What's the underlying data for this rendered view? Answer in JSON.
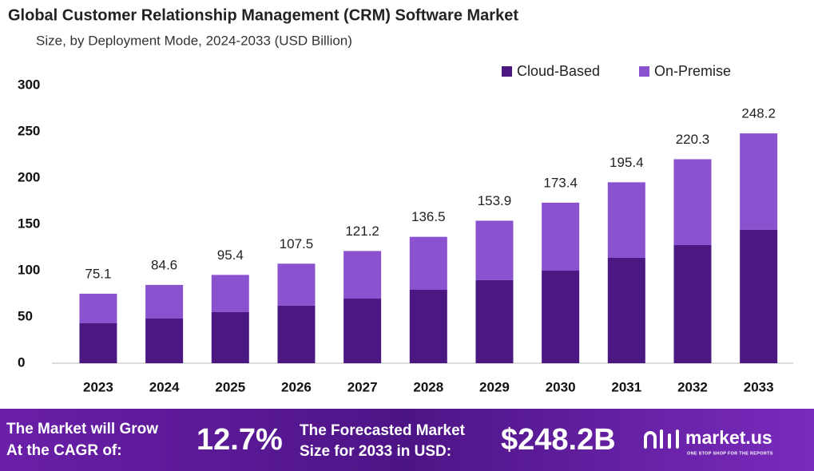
{
  "chart_data": {
    "type": "stacked_bar",
    "title": "Global Customer Relationship Management (CRM) Software Market",
    "subtitle": "Size, by Deployment Mode, 2024-2033 (USD Billion)",
    "categories": [
      "2023",
      "2024",
      "2025",
      "2026",
      "2027",
      "2028",
      "2029",
      "2030",
      "2031",
      "2032",
      "2033"
    ],
    "series": [
      {
        "name": "Cloud-Based",
        "color": "#4a1880",
        "values": [
          43.1,
          48.3,
          55.2,
          62.1,
          69.8,
          79.3,
          89.7,
          100,
          113.8,
          127.6,
          144
        ]
      },
      {
        "name": "On-Premise",
        "color": "#8a52cf",
        "values": [
          32.0,
          36.3,
          40.2,
          45.4,
          51.4,
          57.2,
          64.2,
          73.4,
          81.6,
          92.7,
          104.2
        ]
      }
    ],
    "totals": [
      75.1,
      84.6,
      95.4,
      107.5,
      121.2,
      136.5,
      153.9,
      173.4,
      195.4,
      220.3,
      248.2
    ],
    "ylim": [
      0,
      300
    ],
    "yticks": [
      0,
      50,
      100,
      150,
      200,
      250,
      300
    ],
    "grid": false,
    "legend": "top-right"
  },
  "footer": {
    "cagr_text": [
      "The Market will Grow",
      "At the CAGR of:"
    ],
    "cagr": "12.7%",
    "forecast_text": [
      "The Forecasted Market",
      "Size for 2033 in USD:"
    ],
    "forecast": "$248.2B",
    "brand": "market.us",
    "tagline": "ONE STOP SHOP FOR THE REPORTS"
  }
}
